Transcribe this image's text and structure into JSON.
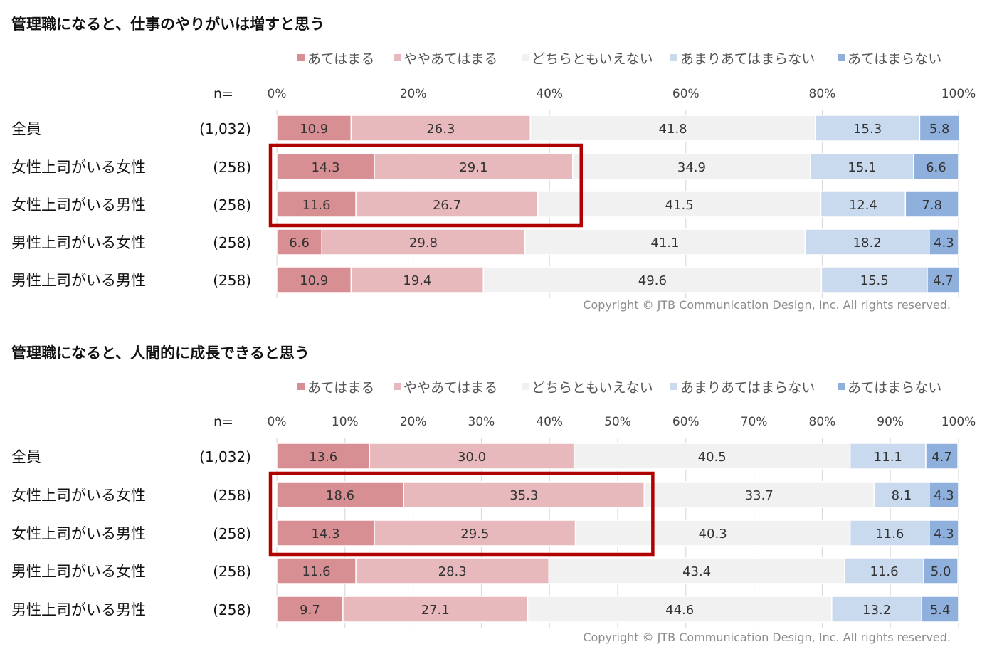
{
  "colors": {
    "series": [
      "#d88f93",
      "#e8b9bc",
      "#f1f1f1",
      "#c9d9ee",
      "#8fb0dc"
    ],
    "highlight": "#b00000",
    "axis": "#d6d6d6",
    "copyright": "#8c8c8c"
  },
  "chart_data": [
    {
      "type": "bar",
      "orientation": "horizontal-stacked-100",
      "title": "管理職になると、仕事のやりがいは増すと思う",
      "n_label": "n=",
      "categories": [
        "全員",
        "女性上司がいる女性",
        "女性上司がいる男性",
        "男性上司がいる女性",
        "男性上司がいる男性"
      ],
      "n_values": [
        "(1,032)",
        "(258)",
        "(258)",
        "(258)",
        "(258)"
      ],
      "series": [
        {
          "name": "あてはまる",
          "values": [
            10.9,
            14.3,
            11.6,
            6.6,
            10.9
          ]
        },
        {
          "name": "ややあてはまる",
          "values": [
            26.3,
            29.1,
            26.7,
            29.8,
            19.4
          ]
        },
        {
          "name": "どちらともいえない",
          "values": [
            41.8,
            34.9,
            41.5,
            41.1,
            49.6
          ]
        },
        {
          "name": "あまりあてはまらない",
          "values": [
            15.3,
            15.1,
            12.4,
            18.2,
            15.5
          ]
        },
        {
          "name": "あてはまらない",
          "values": [
            5.8,
            6.6,
            7.8,
            4.3,
            4.7
          ]
        }
      ],
      "xaxis_ticks": [
        "0%",
        "20%",
        "40%",
        "60%",
        "80%",
        "100%"
      ],
      "tick_values": [
        0,
        20,
        40,
        60,
        80,
        100
      ],
      "xlim": [
        0,
        100
      ],
      "legend_position": "top-right",
      "highlight": {
        "rows": [
          1,
          2
        ],
        "series": [
          0,
          1
        ]
      },
      "copyright": "Copyright © JTB Communication Design, Inc. All rights reserved."
    },
    {
      "type": "bar",
      "orientation": "horizontal-stacked-100",
      "title": "管理職になると、人間的に成長できると思う",
      "n_label": "n=",
      "categories": [
        "全員",
        "女性上司がいる女性",
        "女性上司がいる男性",
        "男性上司がいる女性",
        "男性上司がいる男性"
      ],
      "n_values": [
        "(1,032)",
        "(258)",
        "(258)",
        "(258)",
        "(258)"
      ],
      "series": [
        {
          "name": "あてはまる",
          "values": [
            13.6,
            18.6,
            14.3,
            11.6,
            9.7
          ]
        },
        {
          "name": "ややあてはまる",
          "values": [
            30.0,
            35.3,
            29.5,
            28.3,
            27.1
          ]
        },
        {
          "name": "どちらともいえない",
          "values": [
            40.5,
            33.7,
            40.3,
            43.4,
            44.6
          ]
        },
        {
          "name": "あまりあてはまらない",
          "values": [
            11.1,
            8.1,
            11.6,
            11.6,
            13.2
          ]
        },
        {
          "name": "あてはまらない",
          "values": [
            4.7,
            4.3,
            4.3,
            5.0,
            5.4
          ]
        }
      ],
      "xaxis_ticks": [
        "0%",
        "10%",
        "20%",
        "30%",
        "40%",
        "50%",
        "60%",
        "70%",
        "80%",
        "90%",
        "100%"
      ],
      "tick_values": [
        0,
        10,
        20,
        30,
        40,
        50,
        60,
        70,
        80,
        90,
        100
      ],
      "xlim": [
        0,
        100
      ],
      "legend_position": "top-right",
      "highlight": {
        "rows": [
          1,
          2
        ],
        "series": [
          0,
          1
        ]
      },
      "copyright": "Copyright © JTB Communication Design, Inc. All rights reserved."
    }
  ]
}
